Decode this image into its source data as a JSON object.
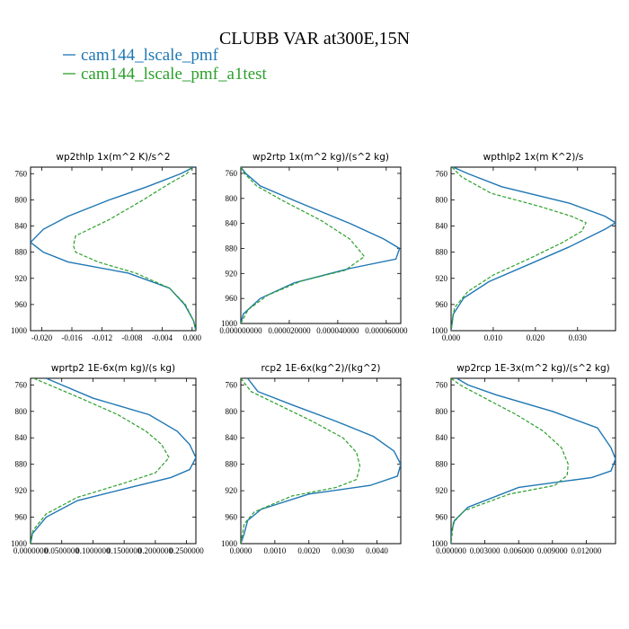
{
  "title": "CLUBB VAR at300E,15N",
  "legend": [
    {
      "name": "cam144_lscale_pmf",
      "color": "#1f77b4",
      "dashed": false
    },
    {
      "name": "cam144_lscale_pmf_a1test",
      "color": "#2ca02c",
      "dashed": true
    }
  ],
  "chart_data": [
    {
      "type": "line",
      "title": "wp2thlp   1x(m^2 K)/s^2",
      "xlim": [
        -0.0215,
        0.0005
      ],
      "ylim": [
        1000,
        750
      ],
      "x_ticks": [
        -0.02,
        -0.016,
        -0.012,
        -0.008,
        -0.004,
        0.0
      ],
      "x_tick_labels": [
        "-0.020",
        "-0.016",
        "-0.012",
        "-0.008",
        "-0.004",
        "0.000"
      ],
      "y_ticks": [
        760,
        800,
        840,
        880,
        920,
        960,
        1000
      ],
      "y_tick_labels": [
        "760",
        "800",
        "840",
        "880",
        "920",
        "960",
        "1000"
      ],
      "series": [
        {
          "name": "cam144_lscale_pmf",
          "points": [
            [
              0.0002,
              750
            ],
            [
              -0.0015,
              760
            ],
            [
              -0.006,
              780
            ],
            [
              -0.011,
              800
            ],
            [
              -0.0165,
              825
            ],
            [
              -0.0198,
              845
            ],
            [
              -0.0215,
              865
            ],
            [
              -0.0198,
              880
            ],
            [
              -0.0165,
              895
            ],
            [
              -0.0085,
              912
            ],
            [
              -0.003,
              935
            ],
            [
              -0.001,
              960
            ],
            [
              0.0002,
              985
            ],
            [
              0.0005,
              1000
            ]
          ]
        },
        {
          "name": "cam144_lscale_pmf_a1test",
          "points": [
            [
              -0.0001,
              750
            ],
            [
              -0.0007,
              760
            ],
            [
              -0.003,
              775
            ],
            [
              -0.0065,
              800
            ],
            [
              -0.011,
              830
            ],
            [
              -0.0155,
              855
            ],
            [
              -0.0158,
              870
            ],
            [
              -0.0155,
              880
            ],
            [
              -0.0125,
              895
            ],
            [
              -0.0075,
              912
            ],
            [
              -0.003,
              935
            ],
            [
              -0.0009,
              960
            ],
            [
              0.0002,
              985
            ],
            [
              0.0005,
              1000
            ]
          ]
        }
      ]
    },
    {
      "type": "line",
      "title": "wp2rtp   1x(m^2 kg)/(s^2 kg)",
      "xlim": [
        0,
        6.6e-05
      ],
      "ylim": [
        1000,
        750
      ],
      "x_ticks": [
        0,
        2e-05,
        4e-05,
        6e-05
      ],
      "x_tick_labels": [
        "0.000000000",
        "0.000020000",
        "0.000040000",
        "0.000060000"
      ],
      "y_ticks": [
        760,
        800,
        840,
        880,
        920,
        960,
        1000
      ],
      "y_tick_labels": [
        "760",
        "800",
        "840",
        "880",
        "920",
        "960",
        "1000"
      ],
      "series": [
        {
          "name": "cam144_lscale_pmf",
          "points": [
            [
              0,
              750
            ],
            [
              2e-06,
              760
            ],
            [
              8e-06,
              780
            ],
            [
              2.3e-05,
              805
            ],
            [
              4.5e-05,
              840
            ],
            [
              5.9e-05,
              865
            ],
            [
              6.55e-05,
              880
            ],
            [
              6.4e-05,
              897
            ],
            [
              4.5e-05,
              912
            ],
            [
              2.2e-05,
              935
            ],
            [
              8e-06,
              960
            ],
            [
              1e-06,
              985
            ],
            [
              0,
              1000
            ]
          ]
        },
        {
          "name": "cam144_lscale_pmf_a1test",
          "points": [
            [
              0,
              750
            ],
            [
              1.5e-06,
              760
            ],
            [
              6.5e-06,
              780
            ],
            [
              1.8e-05,
              805
            ],
            [
              3.3e-05,
              835
            ],
            [
              4.5e-05,
              865
            ],
            [
              5.1e-05,
              893
            ],
            [
              4.3e-05,
              915
            ],
            [
              2.5e-05,
              932
            ],
            [
              1.1e-05,
              955
            ],
            [
              3e-06,
              978
            ],
            [
              0,
              1000
            ]
          ]
        }
      ]
    },
    {
      "type": "line",
      "title": "wpthlp2   1x(m K^2)/s",
      "xlim": [
        0,
        0.039
      ],
      "ylim": [
        1000,
        750
      ],
      "x_ticks": [
        0,
        0.01,
        0.02,
        0.03
      ],
      "x_tick_labels": [
        "0.000",
        "0.010",
        "0.020",
        "0.030"
      ],
      "y_ticks": [
        760,
        800,
        840,
        880,
        920,
        960,
        1000
      ],
      "y_tick_labels": [
        "760",
        "800",
        "840",
        "880",
        "920",
        "960",
        "1000"
      ],
      "series": [
        {
          "name": "cam144_lscale_pmf",
          "points": [
            [
              0.0005,
              750
            ],
            [
              0.004,
              760
            ],
            [
              0.012,
              780
            ],
            [
              0.028,
              805
            ],
            [
              0.0365,
              825
            ],
            [
              0.039,
              835
            ],
            [
              0.0365,
              845
            ],
            [
              0.028,
              872
            ],
            [
              0.018,
              900
            ],
            [
              0.009,
              925
            ],
            [
              0.003,
              950
            ],
            [
              0.0005,
              975
            ],
            [
              0,
              1000
            ]
          ]
        },
        {
          "name": "cam144_lscale_pmf_a1test",
          "points": [
            [
              0.0002,
              750
            ],
            [
              0.0025,
              765
            ],
            [
              0.0095,
              790
            ],
            [
              0.021,
              810
            ],
            [
              0.0285,
              825
            ],
            [
              0.032,
              835
            ],
            [
              0.031,
              848
            ],
            [
              0.0265,
              865
            ],
            [
              0.0185,
              890
            ],
            [
              0.01,
              915
            ],
            [
              0.004,
              940
            ],
            [
              0.0008,
              965
            ],
            [
              0,
              1000
            ]
          ]
        }
      ]
    },
    {
      "type": "line",
      "title": "wprtp2   1E-6x(m kg)/(s kg)",
      "xlim": [
        0,
        0.265
      ],
      "ylim": [
        1000,
        750
      ],
      "x_ticks": [
        0,
        0.05,
        0.1,
        0.15,
        0.2,
        0.25
      ],
      "x_tick_labels": [
        "0.0000000",
        "0.0500000",
        "0.1000000",
        "0.1500000",
        "0.2000000",
        "0.2500000"
      ],
      "y_ticks": [
        760,
        800,
        840,
        880,
        920,
        960,
        1000
      ],
      "y_tick_labels": [
        "760",
        "800",
        "840",
        "880",
        "920",
        "960",
        "1000"
      ],
      "series": [
        {
          "name": "cam144_lscale_pmf",
          "points": [
            [
              0.025,
              750
            ],
            [
              0.05,
              760
            ],
            [
              0.1,
              780
            ],
            [
              0.19,
              805
            ],
            [
              0.235,
              830
            ],
            [
              0.255,
              850
            ],
            [
              0.265,
              870
            ],
            [
              0.255,
              888
            ],
            [
              0.225,
              900
            ],
            [
              0.16,
              915
            ],
            [
              0.075,
              935
            ],
            [
              0.025,
              960
            ],
            [
              0.003,
              985
            ],
            [
              0,
              1000
            ]
          ]
        },
        {
          "name": "cam144_lscale_pmf_a1test",
          "points": [
            [
              0.005,
              750
            ],
            [
              0.03,
              760
            ],
            [
              0.08,
              780
            ],
            [
              0.14,
              805
            ],
            [
              0.185,
              830
            ],
            [
              0.21,
              850
            ],
            [
              0.222,
              870
            ],
            [
              0.2,
              893
            ],
            [
              0.145,
              910
            ],
            [
              0.075,
              930
            ],
            [
              0.025,
              955
            ],
            [
              0.004,
              980
            ],
            [
              0,
              1000
            ]
          ]
        }
      ]
    },
    {
      "type": "line",
      "title": "rcp2   1E-6x(kg^2)/(kg^2)",
      "xlim": [
        0,
        0.0047
      ],
      "ylim": [
        1000,
        750
      ],
      "x_ticks": [
        0,
        0.001,
        0.002,
        0.003,
        0.004
      ],
      "x_tick_labels": [
        "0.0000",
        "0.0010",
        "0.0020",
        "0.0030",
        "0.0040"
      ],
      "y_ticks": [
        760,
        800,
        840,
        880,
        920,
        960,
        1000
      ],
      "y_tick_labels": [
        "760",
        "800",
        "840",
        "880",
        "920",
        "960",
        "1000"
      ],
      "series": [
        {
          "name": "cam144_lscale_pmf",
          "points": [
            [
              0.0002,
              750
            ],
            [
              0.0005,
              770
            ],
            [
              0.0015,
              790
            ],
            [
              0.0028,
              815
            ],
            [
              0.0039,
              838
            ],
            [
              0.0045,
              860
            ],
            [
              0.0047,
              880
            ],
            [
              0.0046,
              898
            ],
            [
              0.0038,
              912
            ],
            [
              0.002,
              925
            ],
            [
              0.0006,
              948
            ],
            [
              0.0002,
              965
            ],
            [
              0.0001,
              985
            ],
            [
              0,
              1000
            ]
          ]
        },
        {
          "name": "cam144_lscale_pmf_a1test",
          "points": [
            [
              0,
              750
            ],
            [
              0.0003,
              770
            ],
            [
              0.0011,
              790
            ],
            [
              0.0021,
              815
            ],
            [
              0.003,
              840
            ],
            [
              0.0034,
              862
            ],
            [
              0.0035,
              883
            ],
            [
              0.0034,
              903
            ],
            [
              0.0028,
              915
            ],
            [
              0.0015,
              928
            ],
            [
              0.0004,
              952
            ],
            [
              0.0001,
              970
            ],
            [
              0,
              1000
            ]
          ]
        }
      ]
    },
    {
      "type": "line",
      "title": "wp2rcp   1E-3x(m^2 kg)/(s^2 kg)",
      "xlim": [
        0,
        0.0146
      ],
      "ylim": [
        1000,
        750
      ],
      "x_ticks": [
        0,
        0.003,
        0.006,
        0.009,
        0.012
      ],
      "x_tick_labels": [
        "0.000000",
        "0.003000",
        "0.006000",
        "0.009000",
        "0.012000"
      ],
      "y_ticks": [
        760,
        800,
        840,
        880,
        920,
        960,
        1000
      ],
      "y_tick_labels": [
        "760",
        "800",
        "840",
        "880",
        "920",
        "960",
        "1000"
      ],
      "series": [
        {
          "name": "cam144_lscale_pmf",
          "points": [
            [
              0.0005,
              750
            ],
            [
              0.0015,
              760
            ],
            [
              0.004,
              775
            ],
            [
              0.009,
              800
            ],
            [
              0.013,
              825
            ],
            [
              0.0142,
              855
            ],
            [
              0.0146,
              872
            ],
            [
              0.0142,
              890
            ],
            [
              0.0125,
              900
            ],
            [
              0.006,
              915
            ],
            [
              0.0015,
              945
            ],
            [
              0.0003,
              965
            ],
            [
              0,
              985
            ],
            [
              0,
              1000
            ]
          ]
        },
        {
          "name": "cam144_lscale_pmf_a1test",
          "points": [
            [
              0,
              750
            ],
            [
              0.0008,
              760
            ],
            [
              0.003,
              780
            ],
            [
              0.0058,
              805
            ],
            [
              0.0082,
              830
            ],
            [
              0.0098,
              855
            ],
            [
              0.0104,
              880
            ],
            [
              0.0103,
              897
            ],
            [
              0.0092,
              912
            ],
            [
              0.0052,
              925
            ],
            [
              0.0012,
              950
            ],
            [
              0.0002,
              968
            ],
            [
              0,
              1000
            ]
          ]
        }
      ]
    }
  ]
}
